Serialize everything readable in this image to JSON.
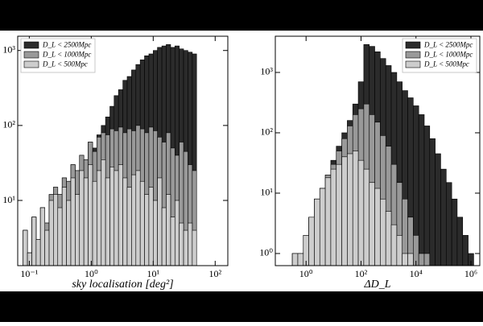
{
  "chart_data": [
    {
      "type": "histogram",
      "x_label": "sky localisation [deg²]",
      "log_x": true,
      "log_y": true,
      "legend": "upper left",
      "xlim": [
        0.065,
        160
      ],
      "ylim": [
        1.35,
        1550
      ],
      "xticks": [
        {
          "value": 0.1,
          "label": "10⁻¹"
        },
        {
          "value": 1,
          "label": "10⁰"
        },
        {
          "value": 10,
          "label": "10¹"
        },
        {
          "value": 100,
          "label": "10²"
        }
      ],
      "yticks": [
        {
          "value": 10,
          "label": "10¹"
        },
        {
          "value": 100,
          "label": "10²"
        },
        {
          "value": 1000,
          "label": "10³"
        }
      ],
      "bins": [
        0.0794,
        0.0933,
        0.11,
        0.129,
        0.151,
        0.178,
        0.209,
        0.245,
        0.288,
        0.339,
        0.398,
        0.468,
        0.55,
        0.646,
        0.759,
        0.891,
        1.05,
        1.23,
        1.45,
        1.7,
        2.0,
        2.34,
        2.75,
        3.24,
        3.8,
        4.47,
        5.25,
        6.17,
        7.24,
        8.51,
        10.0,
        11.7,
        13.8,
        16.2,
        19.1,
        22.4,
        26.3,
        30.9,
        36.3,
        42.7,
        50.1
      ],
      "series": [
        {
          "name": "D_L < 2500Mpc",
          "color": "#2b2b2b",
          "values": [
            4,
            2,
            6,
            3,
            8,
            5,
            12,
            15,
            12,
            20,
            18,
            30,
            25,
            40,
            35,
            60,
            50,
            75,
            100,
            130,
            180,
            250,
            300,
            400,
            450,
            550,
            650,
            750,
            850,
            900,
            1000,
            1100,
            1150,
            1200,
            1100,
            1150,
            1050,
            1000,
            950,
            900
          ]
        },
        {
          "name": "D_L < 1000Mpc",
          "color": "#999999",
          "values": [
            4,
            2,
            6,
            3,
            8,
            5,
            12,
            15,
            12,
            20,
            18,
            30,
            25,
            40,
            35,
            60,
            45,
            70,
            80,
            75,
            90,
            85,
            95,
            80,
            90,
            85,
            100,
            90,
            80,
            95,
            85,
            70,
            60,
            80,
            50,
            40,
            60,
            45,
            30,
            25
          ]
        },
        {
          "name": "D_L < 500Mpc",
          "color": "#cdcdcd",
          "values": [
            4,
            2,
            6,
            3,
            8,
            4,
            10,
            12,
            8,
            15,
            10,
            20,
            12,
            25,
            20,
            30,
            18,
            25,
            35,
            20,
            28,
            25,
            30,
            20,
            15,
            22,
            25,
            18,
            12,
            15,
            10,
            20,
            8,
            12,
            6,
            10,
            5,
            4,
            5,
            4
          ]
        }
      ]
    },
    {
      "type": "histogram",
      "x_label": "ΔD_L",
      "log_x": true,
      "log_y": true,
      "legend": "upper right",
      "xlim": [
        0.076,
        2100000
      ],
      "ylim": [
        0.63,
        3980
      ],
      "xticks": [
        {
          "value": 1,
          "label": "10⁰"
        },
        {
          "value": 100,
          "label": "10²"
        },
        {
          "value": 10000,
          "label": "10⁴"
        },
        {
          "value": 1000000,
          "label": "10⁶"
        }
      ],
      "yticks": [
        {
          "value": 1,
          "label": "10⁰"
        },
        {
          "value": 10,
          "label": "10¹"
        },
        {
          "value": 100,
          "label": "10²"
        },
        {
          "value": 1000,
          "label": "10³"
        }
      ],
      "bins": [
        0.316,
        0.501,
        0.794,
        1.26,
        2.0,
        3.16,
        5.01,
        7.94,
        12.6,
        20.0,
        31.6,
        50.1,
        79.4,
        126,
        200,
        316,
        501,
        794,
        1260,
        2000,
        3160,
        5010,
        7940,
        12600,
        20000,
        31600,
        50100,
        79400,
        126000,
        200000,
        316000,
        501000,
        794000,
        1260000
      ],
      "series": [
        {
          "name": "D_L < 2500Mpc",
          "color": "#2b2b2b",
          "values": [
            1,
            1,
            2,
            4,
            8,
            12,
            20,
            35,
            60,
            100,
            160,
            300,
            700,
            2900,
            2700,
            2200,
            1700,
            1300,
            1000,
            700,
            500,
            380,
            280,
            200,
            130,
            80,
            45,
            25,
            15,
            8,
            4,
            2,
            1
          ]
        },
        {
          "name": "D_L < 1000Mpc",
          "color": "#999999",
          "values": [
            1,
            1,
            2,
            4,
            8,
            12,
            20,
            30,
            50,
            80,
            130,
            200,
            250,
            300,
            200,
            150,
            90,
            60,
            30,
            15,
            8,
            4,
            2,
            1,
            1,
            0,
            0,
            0,
            0,
            0,
            0,
            0,
            0
          ]
        },
        {
          "name": "D_L < 500Mpc",
          "color": "#cdcdcd",
          "values": [
            1,
            1,
            2,
            4,
            8,
            12,
            18,
            25,
            30,
            40,
            45,
            50,
            35,
            25,
            15,
            12,
            8,
            5,
            3,
            2,
            1,
            1,
            0,
            0,
            0,
            0,
            0,
            0,
            0,
            0,
            0,
            0,
            0
          ]
        }
      ]
    }
  ]
}
